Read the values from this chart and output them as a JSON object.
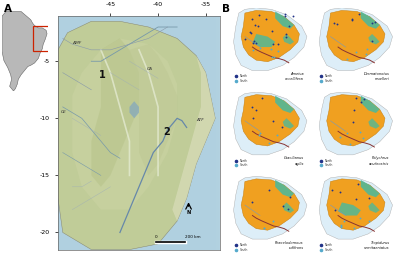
{
  "panel_a_label": "A",
  "panel_b_label": "B",
  "ocean_color": "#b0d0e0",
  "ocean_color2": "#9ec8de",
  "topo_base": "#c8d4a8",
  "topo_highland": "#b8c490",
  "topo_lowland": "#d8ddb8",
  "topo_slope": "#cac8a0",
  "coastal_ocean": "#b8d8e8",
  "sa_inset_land": "#b8b8b8",
  "sa_inset_bg": "#c0d8e8",
  "sa_inset_box": "#cc2200",
  "species_panel_bg": "#ffffff",
  "orange_region": "#f0a020",
  "teal_region": "#50b898",
  "north_dot_color": "#223388",
  "south_dot_color": "#55aacc",
  "river_color_main": "#5580aa",
  "river_color_sf": "#7799bb",
  "bg_white": "#ffffff",
  "tick_lons": [
    "-45",
    "-40",
    "-35"
  ],
  "tick_lats": [
    "-5",
    "-10",
    "-15",
    "-20"
  ],
  "scale_label": "200 km",
  "species_panels": [
    {
      "name": "Ameiva\noccellifera",
      "row": 0,
      "col": 0,
      "has_teal_mid": true,
      "n_north": 20,
      "n_south": 6
    },
    {
      "name": "Dermatonotus\nmuelleri",
      "row": 0,
      "col": 1,
      "has_teal_mid": false,
      "n_north": 8,
      "n_south": 4
    },
    {
      "name": "Gracilianus\nagilis",
      "row": 1,
      "col": 0,
      "has_teal_mid": false,
      "n_north": 6,
      "n_south": 4
    },
    {
      "name": "Polychrus\nacutirostris",
      "row": 1,
      "col": 1,
      "has_teal_mid": false,
      "n_north": 5,
      "n_south": 5
    },
    {
      "name": "Phacelodomous\nrufifrons",
      "row": 2,
      "col": 0,
      "has_teal_mid": false,
      "n_north": 5,
      "n_south": 3
    },
    {
      "name": "Tropidurus\nsemitaeniatus",
      "row": 2,
      "col": 1,
      "has_teal_mid": true,
      "n_north": 6,
      "n_south": 7
    }
  ]
}
